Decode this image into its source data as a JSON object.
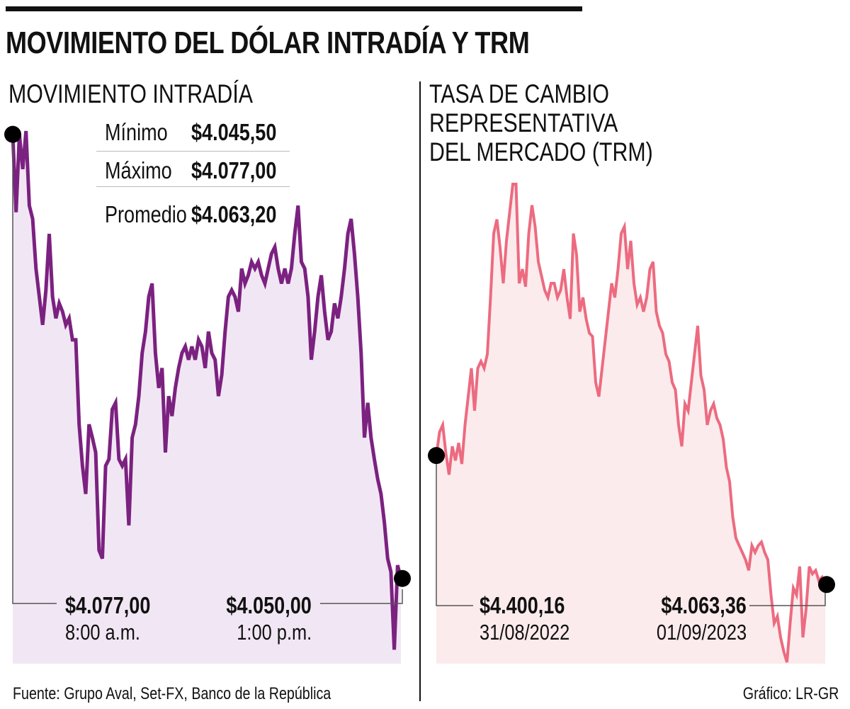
{
  "title": "MOVIMIENTO DEL DÓLAR INTRADÍA Y TRM",
  "footer": {
    "source": "Fuente: Grupo Aval, Set-FX, Banco de la República",
    "credit": "Gráfico: LR-GR"
  },
  "chart_data": [
    {
      "type": "line",
      "title": "MOVIMIENTO INTRADÍA",
      "color": "#7b2180",
      "fill": "#f1e7f4",
      "x_range": [
        "8:00 a.m.",
        "1:00 p.m."
      ],
      "ylim": [
        4045.5,
        4077.0
      ],
      "stats": [
        {
          "label": "Mínimo",
          "value": "$4.045,50"
        },
        {
          "label": "Máximo",
          "value": "$4.077,00"
        },
        {
          "label": "Promedio",
          "value": "$4.063,20"
        }
      ],
      "start": {
        "value": "$4.077,00",
        "label": "8:00 a.m."
      },
      "end": {
        "value": "$4.050,00",
        "label": "1:00 p.m."
      },
      "values": [
        4076.8,
        4072.1,
        4076.8,
        4074.7,
        4077.0,
        4072.5,
        4071.7,
        4068.7,
        4067.0,
        4065.3,
        4067.4,
        4070.8,
        4067.0,
        4065.7,
        4066.6,
        4066.1,
        4065.3,
        4065.7,
        4064.4,
        4064.4,
        4059.3,
        4056.8,
        4055.1,
        4059.3,
        4058.5,
        4057.6,
        4051.7,
        4051.2,
        4056.8,
        4057.2,
        4060.2,
        4060.6,
        4057.2,
        4056.8,
        4057.2,
        4053.2,
        4058.5,
        4059.3,
        4061.0,
        4063.6,
        4064.9,
        4067.0,
        4067.8,
        4063.6,
        4061.5,
        4062.7,
        4057.6,
        4061.0,
        4059.8,
        4061.5,
        4062.7,
        4063.6,
        4064.0,
        4063.2,
        4064.0,
        4063.2,
        4064.4,
        4064.0,
        4062.7,
        4064.9,
        4063.6,
        4063.2,
        4061.0,
        4062.3,
        4064.9,
        4067.0,
        4067.4,
        4067.0,
        4066.1,
        4068.7,
        4067.8,
        4068.3,
        4069.1,
        4068.7,
        4069.1,
        4068.3,
        4067.8,
        4068.7,
        4069.6,
        4070.0,
        4068.7,
        4067.8,
        4068.7,
        4067.8,
        4068.7,
        4070.8,
        4072.5,
        4069.1,
        4068.7,
        4067.0,
        4063.2,
        4064.9,
        4067.0,
        4068.3,
        4066.1,
        4064.4,
        4064.9,
        4066.6,
        4065.7,
        4067.0,
        4068.7,
        4070.8,
        4071.7,
        4069.6,
        4067.0,
        4063.6,
        4058.5,
        4060.6,
        4058.5,
        4057.2,
        4056.0,
        4055.1,
        4053.4,
        4051.2,
        4050.4,
        4045.7,
        4050.8,
        4050.0
      ]
    },
    {
      "type": "line",
      "title": "TASA DE CAMBIO REPRESENTATIVA DEL MERCADO (TRM)",
      "title_lines": [
        "TASA DE CAMBIO",
        "REPRESENTATIVA",
        "DEL MERCADO (TRM)"
      ],
      "color": "#ec6b80",
      "fill": "#fcebec",
      "x_range": [
        "31/08/2022",
        "01/09/2023"
      ],
      "ylim": [
        3860,
        5109
      ],
      "start": {
        "value": "$4.400,16",
        "label": "31/08/2022"
      },
      "end": {
        "value": "$4.063,36",
        "label": "01/09/2023"
      },
      "values": [
        4400,
        4461,
        4480,
        4406,
        4350,
        4424,
        4387,
        4433,
        4378,
        4480,
        4554,
        4628,
        4517,
        4628,
        4646,
        4628,
        4665,
        4813,
        4980,
        5017,
        4943,
        4850,
        4961,
        5035,
        5109,
        5109,
        4850,
        4887,
        4841,
        4980,
        5054,
        4998,
        4906,
        4869,
        4832,
        4813,
        4850,
        4850,
        4813,
        4832,
        4887,
        4813,
        4757,
        4980,
        4924,
        4776,
        4813,
        4757,
        4720,
        4711,
        4591,
        4554,
        4628,
        4702,
        4776,
        4850,
        4813,
        4887,
        4980,
        4998,
        4887,
        4961,
        4850,
        4794,
        4813,
        4776,
        4813,
        4887,
        4906,
        4776,
        4739,
        4720,
        4665,
        4646,
        4591,
        4572,
        4480,
        4424,
        4535,
        4517,
        4591,
        4665,
        4739,
        4609,
        4572,
        4480,
        4517,
        4535,
        4498,
        4480,
        4443,
        4369,
        4332,
        4239,
        4184,
        4165,
        4147,
        4128,
        4100,
        4165,
        4147,
        4165,
        4174,
        4147,
        4128,
        4036,
        3962,
        3980,
        3925,
        3888,
        3860,
        3962,
        4054,
        4036,
        4110,
        3925,
        3999,
        4110,
        4091,
        4100,
        4073,
        4082,
        4063
      ]
    }
  ]
}
